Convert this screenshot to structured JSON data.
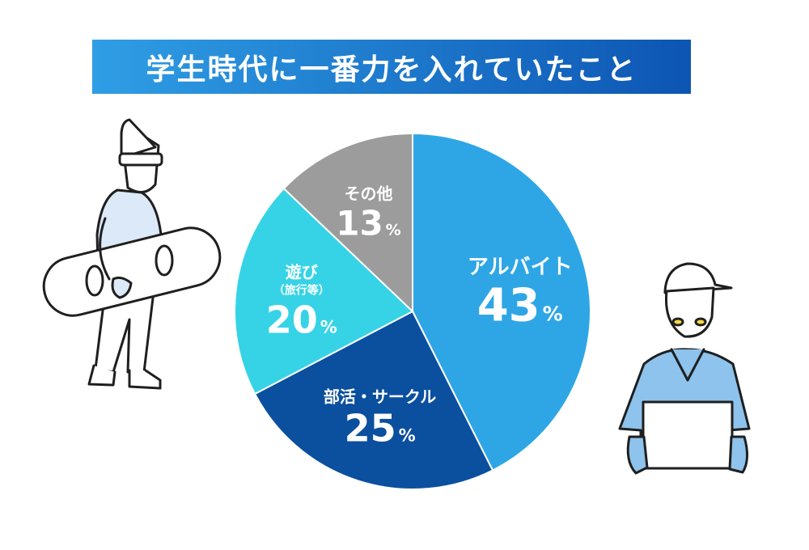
{
  "title": "学生時代に一番力を入れていたこと",
  "colors": {
    "title_gradient_start": "#2f9ee5",
    "title_gradient_end": "#0d55b3",
    "baito": "#2ea6e6",
    "bukatsu": "#0b4f9f",
    "asobi": "#36d3e6",
    "other": "#9c9c9c"
  },
  "chart_data": {
    "type": "pie",
    "title": "学生時代に一番力を入れていたこと",
    "slices": [
      {
        "key": "baito",
        "label": "アルバイト",
        "value": 43,
        "unit": "%"
      },
      {
        "key": "bukatsu",
        "label": "部活・サークル",
        "value": 25,
        "unit": "%"
      },
      {
        "key": "asobi",
        "label": "遊び",
        "sublabel": "（旅行等）",
        "value": 20,
        "unit": "%"
      },
      {
        "key": "other",
        "label": "その他",
        "value": 13,
        "unit": "%"
      }
    ]
  },
  "illustrations": {
    "left": "snowboarder-illustration",
    "right": "delivery-worker-illustration"
  }
}
